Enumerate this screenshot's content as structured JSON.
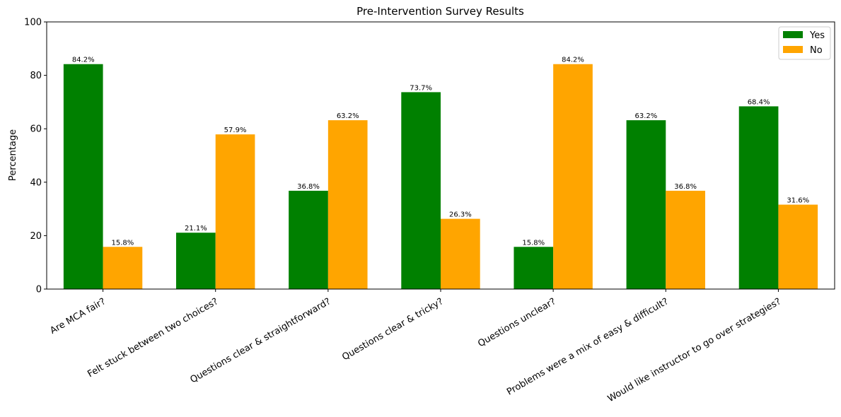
{
  "chart_data": {
    "type": "bar",
    "title": "Pre-Intervention Survey Results",
    "xlabel": "",
    "ylabel": "Percentage",
    "ylim": [
      0,
      100
    ],
    "yticks": [
      0,
      20,
      40,
      60,
      80,
      100
    ],
    "grid": false,
    "legend_position": "top-right",
    "categories": [
      "Are MCA fair?",
      "Felt stuck between two choices?",
      "Questions clear & straightforward?",
      "Questions clear & tricky?",
      "Questions unclear?",
      "Problems were a mix of easy & difficult?",
      "Would like instructor to go over strategies?"
    ],
    "series": [
      {
        "name": "Yes",
        "color": "#008000",
        "values": [
          84.2,
          21.1,
          36.8,
          73.7,
          15.8,
          63.2,
          68.4
        ],
        "labels": [
          "84.2%",
          "21.1%",
          "36.8%",
          "73.7%",
          "15.8%",
          "63.2%",
          "68.4%"
        ]
      },
      {
        "name": "No",
        "color": "#FFA500",
        "values": [
          15.8,
          57.9,
          63.2,
          26.3,
          84.2,
          36.8,
          31.6
        ],
        "labels": [
          "15.8%",
          "57.9%",
          "63.2%",
          "26.3%",
          "84.2%",
          "36.8%",
          "31.6%"
        ]
      }
    ]
  }
}
